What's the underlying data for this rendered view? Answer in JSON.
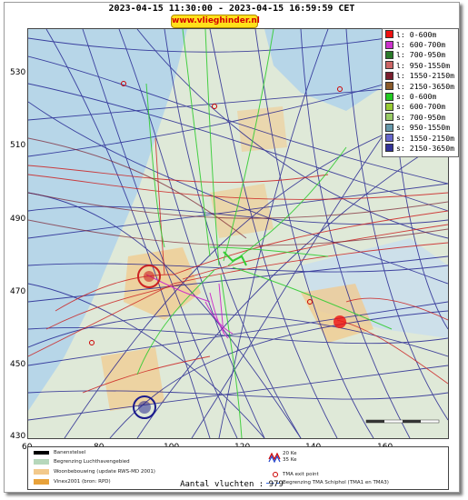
{
  "header": {
    "date_range": "2023-04-15 11:30:00 - 2023-04-15 16:59:59 CET",
    "website": "www.vlieghinder.nl"
  },
  "axes": {
    "y_ticks": [
      "530",
      "510",
      "490",
      "470",
      "450",
      "430"
    ],
    "x_ticks": [
      "60",
      "80",
      "100",
      "120",
      "140",
      "160"
    ]
  },
  "legend": [
    {
      "label": "l: 0-600m",
      "color": "#ee1111"
    },
    {
      "label": "l: 600-700m",
      "color": "#cc33cc"
    },
    {
      "label": "l: 700-950m",
      "color": "#2a7a2a"
    },
    {
      "label": "l: 950-1550m",
      "color": "#cc6666"
    },
    {
      "label": "l: 1550-2150m",
      "color": "#7a1e2e"
    },
    {
      "label": "l: 2150-3650m",
      "color": "#8a5a2a"
    },
    {
      "label": "s: 0-600m",
      "color": "#22cc22"
    },
    {
      "label": "s: 600-700m",
      "color": "#99cc33"
    },
    {
      "label": "s: 700-950m",
      "color": "#99cc66"
    },
    {
      "label": "s: 950-1550m",
      "color": "#6699aa"
    },
    {
      "label": "s: 1550-2150m",
      "color": "#6666cc"
    },
    {
      "label": "s: 2150-3650m",
      "color": "#333399"
    }
  ],
  "map_legend": {
    "runway": "Banenstelsel",
    "airport_boundary": "Begrenzing Luchthavengebied",
    "housing": "Woonbebouwing (update RWS-MD 2001)",
    "vinex": "Vinex2001 (bron: RPD)",
    "contour_20": "20 Ke",
    "contour_35": "35 Ke",
    "tma_exit": "TMA exit point",
    "tma_boundary": "Begrenzing TMA Schiphol  (TMA1 en TMA3)"
  },
  "footer": {
    "flights": "Aantal vluchten : 979"
  },
  "colors": {
    "track_blue": "#1a1a8c",
    "track_red": "#cc2222",
    "track_green": "#33cc33",
    "track_magenta": "#cc22cc",
    "water": "#b7d6e8",
    "land": "#dfe9d8",
    "urban": "#f2c98c"
  }
}
